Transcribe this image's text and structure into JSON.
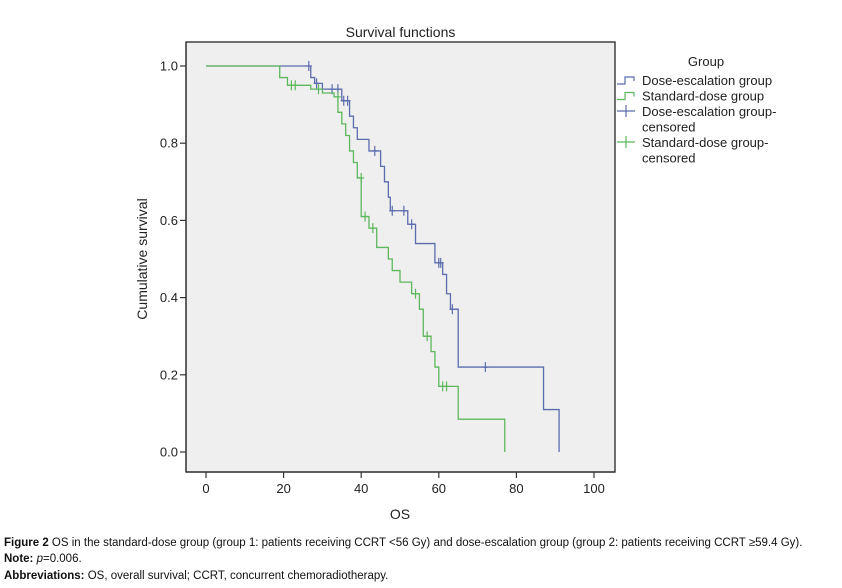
{
  "chart_data": {
    "type": "line",
    "subtype": "kaplan-meier-step",
    "title": "Survival functions",
    "xlabel": "OS",
    "ylabel": "Cumulative survival",
    "xlim": [
      -5,
      105
    ],
    "ylim": [
      -0.06,
      1.06
    ],
    "xticks": [
      0,
      20,
      40,
      60,
      80,
      100
    ],
    "xtick_labels": [
      "0",
      "20",
      "40",
      "60",
      "80",
      "100"
    ],
    "yticks": [
      0.0,
      0.2,
      0.4,
      0.6,
      0.8,
      1.0
    ],
    "ytick_labels": [
      "0.0",
      "0.2",
      "0.4",
      "0.6",
      "0.8",
      "1.0"
    ],
    "grid": false,
    "legend": {
      "title": "Group",
      "placement": "right",
      "entries": [
        {
          "label": "Dose-escalation group",
          "marker": "step",
          "color": "#5b6cae"
        },
        {
          "label": "Standard-dose group",
          "marker": "step",
          "color": "#5cb85c"
        },
        {
          "label": "Dose-escalation group-censored",
          "label_lines": [
            "Dose-escalation group-",
            "censored"
          ],
          "marker": "plus",
          "color": "#5b6cae"
        },
        {
          "label": "Standard-dose group-censored",
          "label_lines": [
            "Standard-dose group-",
            "censored"
          ],
          "marker": "plus",
          "color": "#5cb85c"
        }
      ]
    },
    "series": [
      {
        "name": "Dose-escalation group",
        "color": "#5b6cae",
        "steps": [
          [
            0,
            1.0
          ],
          [
            27,
            0.97
          ],
          [
            28,
            0.955
          ],
          [
            30,
            0.94
          ],
          [
            35,
            0.91
          ],
          [
            37,
            0.87
          ],
          [
            38,
            0.84
          ],
          [
            39,
            0.81
          ],
          [
            42,
            0.78
          ],
          [
            45,
            0.74
          ],
          [
            46,
            0.7
          ],
          [
            47,
            0.66
          ],
          [
            47.5,
            0.625
          ],
          [
            52,
            0.59
          ],
          [
            54,
            0.54
          ],
          [
            59,
            0.49
          ],
          [
            61,
            0.46
          ],
          [
            62,
            0.41
          ],
          [
            63,
            0.37
          ],
          [
            65,
            0.22
          ],
          [
            87,
            0.11
          ],
          [
            91,
            0.0
          ]
        ],
        "censored": [
          [
            26.5,
            1.0
          ],
          [
            28.5,
            0.955
          ],
          [
            32.5,
            0.94
          ],
          [
            34,
            0.94
          ],
          [
            35.5,
            0.91
          ],
          [
            36.5,
            0.91
          ],
          [
            43.5,
            0.78
          ],
          [
            48,
            0.625
          ],
          [
            51,
            0.625
          ],
          [
            53,
            0.59
          ],
          [
            60,
            0.49
          ],
          [
            60.5,
            0.49
          ],
          [
            63.5,
            0.37
          ],
          [
            72,
            0.22
          ]
        ]
      },
      {
        "name": "Standard-dose group",
        "color": "#5cb85c",
        "steps": [
          [
            0,
            1.0
          ],
          [
            19,
            0.97
          ],
          [
            21,
            0.95
          ],
          [
            27,
            0.94
          ],
          [
            30,
            0.93
          ],
          [
            33,
            0.92
          ],
          [
            34,
            0.88
          ],
          [
            35,
            0.85
          ],
          [
            36,
            0.82
          ],
          [
            37,
            0.78
          ],
          [
            38,
            0.75
          ],
          [
            39,
            0.71
          ],
          [
            40,
            0.61
          ],
          [
            42,
            0.58
          ],
          [
            44,
            0.53
          ],
          [
            47,
            0.5
          ],
          [
            48,
            0.47
          ],
          [
            50,
            0.44
          ],
          [
            53,
            0.41
          ],
          [
            55,
            0.37
          ],
          [
            56,
            0.3
          ],
          [
            58,
            0.26
          ],
          [
            59,
            0.22
          ],
          [
            60,
            0.17
          ],
          [
            65,
            0.085
          ],
          [
            77,
            0.0
          ]
        ],
        "censored": [
          [
            22,
            0.95
          ],
          [
            23,
            0.95
          ],
          [
            29,
            0.94
          ],
          [
            34,
            0.92
          ],
          [
            40,
            0.71
          ],
          [
            41,
            0.61
          ],
          [
            43,
            0.58
          ],
          [
            54,
            0.41
          ],
          [
            57,
            0.3
          ],
          [
            61,
            0.17
          ],
          [
            62,
            0.17
          ]
        ]
      }
    ]
  },
  "caption": {
    "figure_label": "Figure 2",
    "figure_text": " OS in the standard-dose group (group 1: patients receiving CCRT <56 Gy) and dose-escalation group (group 2: patients receiving CCRT ≥59.4 Gy).",
    "note_label": "Note:",
    "note_p": " p",
    "note_value": "=0.006.",
    "abbrev_label": "Abbreviations:",
    "abbrev_text": " OS, overall survival; CCRT, concurrent chemoradiotherapy."
  }
}
